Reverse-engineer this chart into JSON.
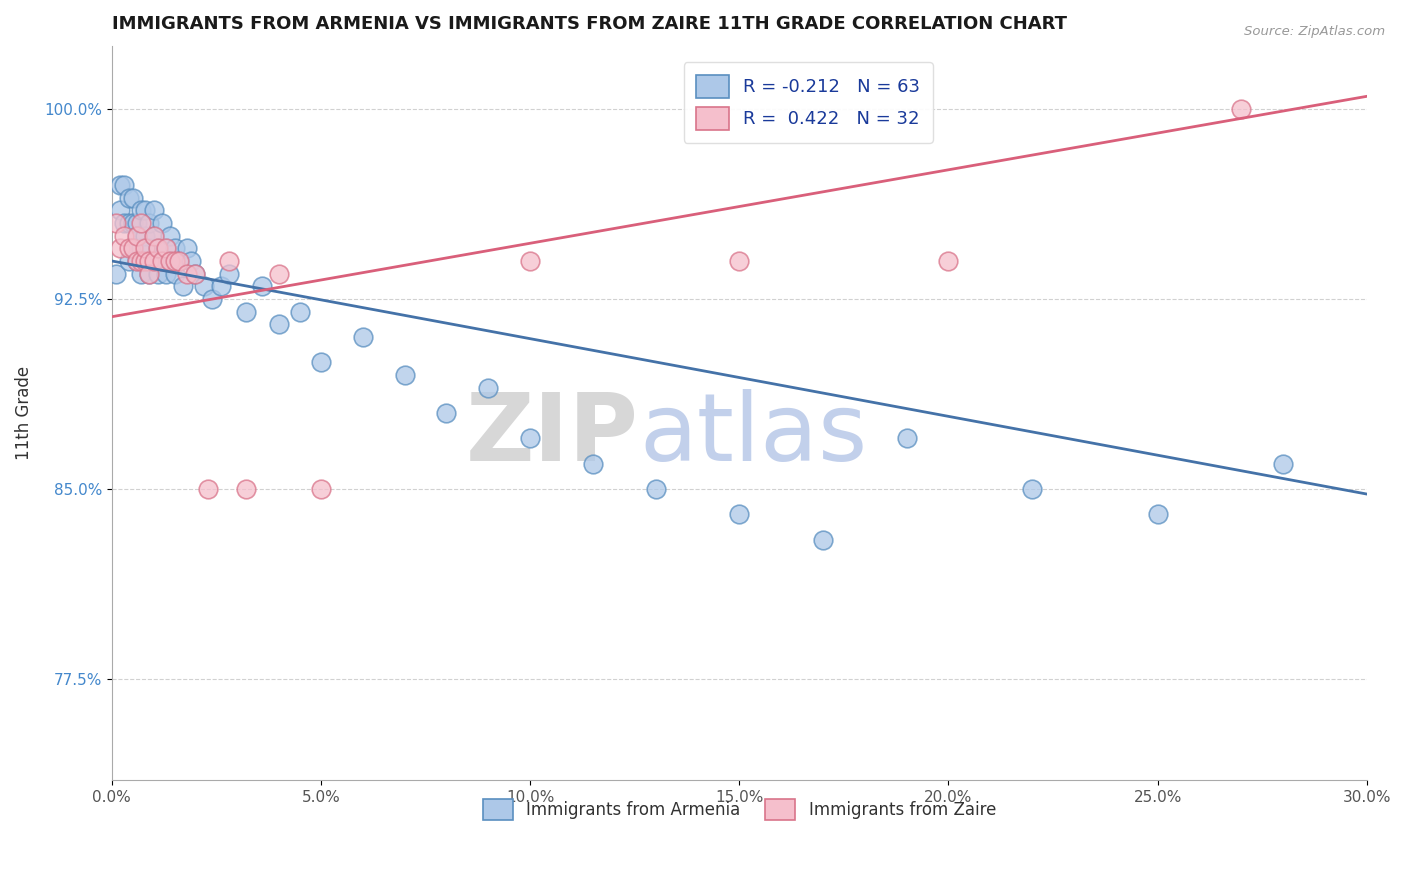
{
  "title": "IMMIGRANTS FROM ARMENIA VS IMMIGRANTS FROM ZAIRE 11TH GRADE CORRELATION CHART",
  "source": "Source: ZipAtlas.com",
  "ylabel": "11th Grade",
  "xlim": [
    0.0,
    0.3
  ],
  "ylim": [
    0.735,
    1.025
  ],
  "xtick_labels": [
    "0.0%",
    "5.0%",
    "10.0%",
    "15.0%",
    "20.0%",
    "25.0%",
    "30.0%"
  ],
  "xtick_vals": [
    0.0,
    0.05,
    0.1,
    0.15,
    0.2,
    0.25,
    0.3
  ],
  "ytick_labels": [
    "77.5%",
    "85.0%",
    "92.5%",
    "100.0%"
  ],
  "ytick_vals": [
    0.775,
    0.85,
    0.925,
    1.0
  ],
  "blue_fill": "#adc8e8",
  "blue_edge": "#5a8fc0",
  "pink_fill": "#f5bfcc",
  "pink_edge": "#d9748a",
  "blue_line": "#4472a8",
  "pink_line": "#d95f7a",
  "legend_r_color": "#1a3a8a",
  "legend_n_color": "#1a6a1a",
  "watermark_zip": "#d0d0d0",
  "watermark_atlas": "#b8c8e8",
  "armenia_x": [
    0.001,
    0.002,
    0.002,
    0.003,
    0.003,
    0.004,
    0.004,
    0.004,
    0.005,
    0.005,
    0.005,
    0.006,
    0.006,
    0.006,
    0.007,
    0.007,
    0.007,
    0.008,
    0.008,
    0.008,
    0.009,
    0.009,
    0.009,
    0.01,
    0.01,
    0.01,
    0.011,
    0.011,
    0.012,
    0.012,
    0.013,
    0.013,
    0.014,
    0.014,
    0.015,
    0.015,
    0.016,
    0.017,
    0.018,
    0.019,
    0.02,
    0.022,
    0.024,
    0.026,
    0.028,
    0.032,
    0.036,
    0.04,
    0.045,
    0.05,
    0.06,
    0.07,
    0.08,
    0.09,
    0.1,
    0.115,
    0.13,
    0.15,
    0.17,
    0.19,
    0.22,
    0.25,
    0.28
  ],
  "armenia_y": [
    0.935,
    0.96,
    0.97,
    0.955,
    0.97,
    0.965,
    0.955,
    0.94,
    0.965,
    0.955,
    0.945,
    0.955,
    0.94,
    0.95,
    0.96,
    0.945,
    0.935,
    0.95,
    0.94,
    0.96,
    0.945,
    0.935,
    0.955,
    0.94,
    0.95,
    0.96,
    0.945,
    0.935,
    0.94,
    0.955,
    0.945,
    0.935,
    0.94,
    0.95,
    0.945,
    0.935,
    0.94,
    0.93,
    0.945,
    0.94,
    0.935,
    0.93,
    0.925,
    0.93,
    0.935,
    0.92,
    0.93,
    0.915,
    0.92,
    0.9,
    0.91,
    0.895,
    0.88,
    0.89,
    0.87,
    0.86,
    0.85,
    0.84,
    0.83,
    0.87,
    0.85,
    0.84,
    0.86
  ],
  "zaire_x": [
    0.001,
    0.002,
    0.003,
    0.004,
    0.005,
    0.006,
    0.006,
    0.007,
    0.007,
    0.008,
    0.008,
    0.009,
    0.009,
    0.01,
    0.01,
    0.011,
    0.012,
    0.013,
    0.014,
    0.015,
    0.016,
    0.018,
    0.02,
    0.023,
    0.028,
    0.032,
    0.04,
    0.05,
    0.1,
    0.15,
    0.2,
    0.27
  ],
  "zaire_y": [
    0.955,
    0.945,
    0.95,
    0.945,
    0.945,
    0.94,
    0.95,
    0.94,
    0.955,
    0.94,
    0.945,
    0.94,
    0.935,
    0.95,
    0.94,
    0.945,
    0.94,
    0.945,
    0.94,
    0.94,
    0.94,
    0.935,
    0.935,
    0.85,
    0.94,
    0.85,
    0.935,
    0.85,
    0.94,
    0.94,
    0.94,
    1.0
  ],
  "blue_line_x0": 0.0,
  "blue_line_x1": 0.3,
  "blue_line_y0": 0.94,
  "blue_line_y1": 0.848,
  "pink_line_x0": 0.0,
  "pink_line_x1": 0.3,
  "pink_line_y0": 0.918,
  "pink_line_y1": 1.005
}
